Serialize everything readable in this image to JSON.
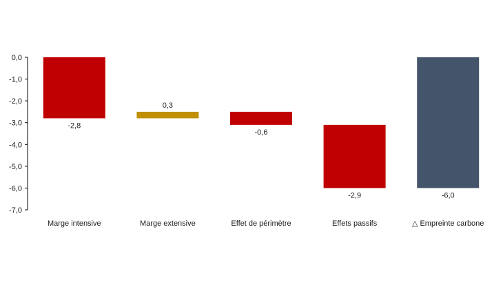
{
  "chart_data": {
    "type": "bar",
    "subtype": "waterfall",
    "categories": [
      "Marge intensive",
      "Marge extensive",
      "Effet de périmètre",
      "Effets passifs",
      "△ Empreinte carbone"
    ],
    "values": [
      -2.8,
      0.3,
      -0.6,
      -2.9,
      -6.0
    ],
    "value_labels": [
      "-2,8",
      "0,3",
      "-0,6",
      "-2,9",
      "-6,0"
    ],
    "bars": [
      {
        "start": 0.0,
        "end": -2.8,
        "color": "#C00000"
      },
      {
        "start": -2.8,
        "end": -2.5,
        "color": "#C09000"
      },
      {
        "start": -2.5,
        "end": -3.1,
        "color": "#C00000"
      },
      {
        "start": -3.1,
        "end": -6.0,
        "color": "#C00000"
      },
      {
        "start": 0.0,
        "end": -6.0,
        "color": "#44546A"
      }
    ],
    "yticks": [
      "0,0",
      "-1,0",
      "-2,0",
      "-3,0",
      "-4,0",
      "-5,0",
      "-6,0",
      "-7,0"
    ],
    "ylim": [
      -7,
      0
    ],
    "grid": false,
    "title": "",
    "xlabel": "",
    "ylabel": ""
  }
}
